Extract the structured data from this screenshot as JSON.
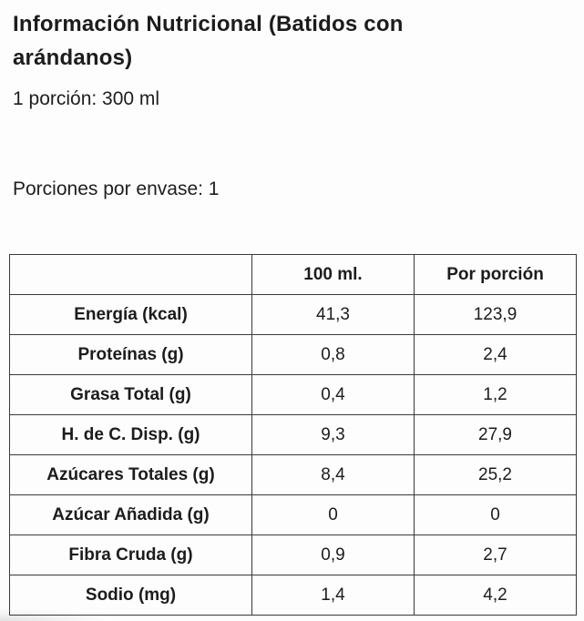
{
  "page": {
    "title": "Información Nutricional (Batidos con arándanos)",
    "serving_size": "1 porción: 300 ml",
    "servings_per_container": "Porciones por envase: 1"
  },
  "table": {
    "columns": [
      "",
      "100 ml.",
      "Por porción"
    ],
    "rows": [
      {
        "label": "Energía (kcal)",
        "per_100ml": "41,3",
        "per_portion": "123,9"
      },
      {
        "label": "Proteínas (g)",
        "per_100ml": "0,8",
        "per_portion": "2,4"
      },
      {
        "label": "Grasa Total (g)",
        "per_100ml": "0,4",
        "per_portion": "1,2"
      },
      {
        "label": "H. de C. Disp. (g)",
        "per_100ml": "9,3",
        "per_portion": "27,9"
      },
      {
        "label": "Azúcares Totales (g)",
        "per_100ml": "8,4",
        "per_portion": "25,2"
      },
      {
        "label": "Azúcar Añadida (g)",
        "per_100ml": "0",
        "per_portion": "0"
      },
      {
        "label": "Fibra Cruda (g)",
        "per_100ml": "0,9",
        "per_portion": "2,7"
      },
      {
        "label": "Sodio (mg)",
        "per_100ml": "1,4",
        "per_portion": "4,2"
      }
    ]
  },
  "colors": {
    "text": "#1c1c1c",
    "border": "#3a3a3a",
    "background": "#fdfdfd"
  }
}
